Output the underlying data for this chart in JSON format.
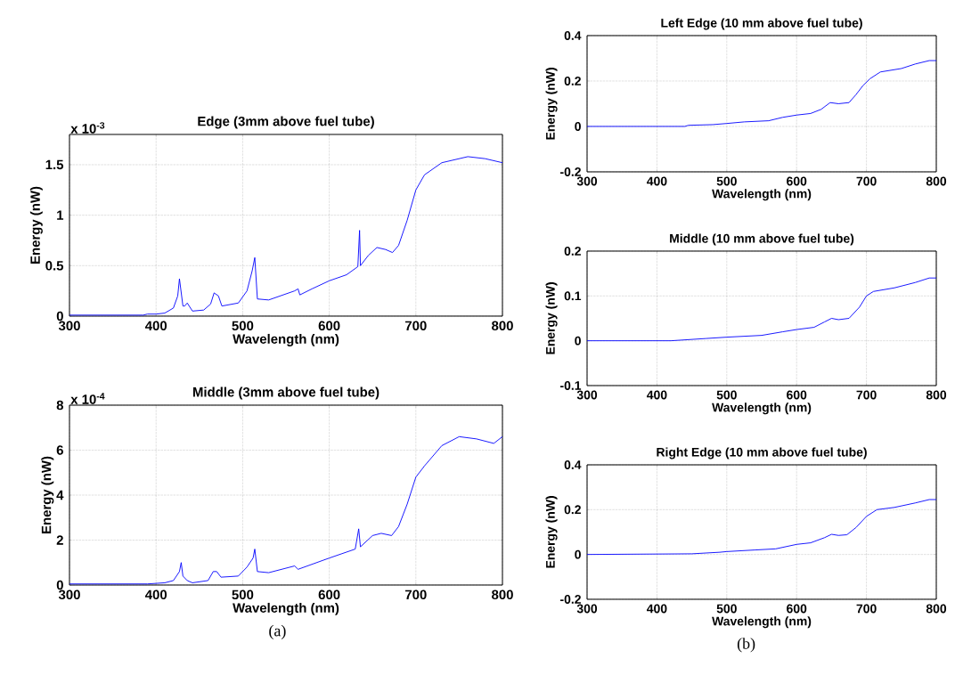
{
  "chart_data": [
    {
      "type": "line",
      "title": "Edge (3mm above fuel tube)",
      "xlabel": "Wavelength (nm)",
      "ylabel": "Energy (nW)",
      "annotations": [
        "x 10$^{-3}$"
      ],
      "xlim": [
        300,
        800
      ],
      "ylim": [
        0,
        1.8
      ],
      "xticks": [
        300,
        400,
        500,
        600,
        700,
        800
      ],
      "yticks": [
        0,
        0.5,
        1,
        1.5
      ],
      "grid": true,
      "x": [
        300,
        350,
        385,
        390,
        400,
        410,
        420,
        425,
        427,
        431,
        433,
        436,
        442,
        455,
        463,
        467,
        472,
        476,
        495,
        505,
        511,
        514,
        517,
        530,
        560,
        564,
        566,
        580,
        600,
        620,
        633,
        635,
        636,
        645,
        655,
        665,
        673,
        680,
        690,
        700,
        710,
        730,
        760,
        780,
        800
      ],
      "series": [
        {
          "color": "#0000ff",
          "values": [
            0.01,
            0.01,
            0.01,
            0.02,
            0.02,
            0.03,
            0.08,
            0.2,
            0.37,
            0.1,
            0.1,
            0.13,
            0.05,
            0.06,
            0.12,
            0.23,
            0.2,
            0.1,
            0.13,
            0.25,
            0.45,
            0.58,
            0.17,
            0.16,
            0.25,
            0.27,
            0.21,
            0.27,
            0.35,
            0.41,
            0.49,
            0.85,
            0.5,
            0.6,
            0.68,
            0.66,
            0.63,
            0.7,
            0.95,
            1.25,
            1.4,
            1.52,
            1.58,
            1.56,
            1.52
          ]
        }
      ]
    },
    {
      "type": "line",
      "title": "Middle (3mm above fuel tube)",
      "xlabel": "Wavelength (nm)",
      "ylabel": "Energy (nW)",
      "annotations": [
        "x 10$^{-4}$",
        "(a)"
      ],
      "xlim": [
        300,
        800
      ],
      "ylim": [
        0,
        8
      ],
      "xticks": [
        300,
        400,
        500,
        600,
        700,
        800
      ],
      "yticks": [
        0,
        2,
        4,
        6,
        8
      ],
      "grid": true,
      "x": [
        300,
        390,
        410,
        420,
        427,
        429,
        431,
        436,
        442,
        460,
        466,
        470,
        475,
        495,
        505,
        512,
        514,
        517,
        530,
        560,
        564,
        600,
        630,
        634,
        636,
        650,
        660,
        672,
        680,
        690,
        700,
        710,
        730,
        750,
        770,
        790,
        800
      ],
      "series": [
        {
          "color": "#0000ff",
          "values": [
            0.05,
            0.05,
            0.1,
            0.2,
            0.6,
            1,
            0.4,
            0.2,
            0.1,
            0.2,
            0.6,
            0.6,
            0.35,
            0.4,
            0.8,
            1.2,
            1.6,
            0.6,
            0.55,
            0.85,
            0.7,
            1.2,
            1.6,
            2.5,
            1.7,
            2.2,
            2.3,
            2.2,
            2.6,
            3.6,
            4.8,
            5.3,
            6.2,
            6.6,
            6.5,
            6.3,
            6.6
          ]
        }
      ]
    },
    {
      "type": "line",
      "title": "Left Edge (10 mm above fuel tube)",
      "xlabel": "Wavelength (nm)",
      "ylabel": "Energy (nW)",
      "xlim": [
        300,
        800
      ],
      "ylim": [
        -0.2,
        0.4
      ],
      "xticks": [
        300,
        400,
        500,
        600,
        700,
        800
      ],
      "yticks": [
        -0.2,
        0,
        0.2,
        0.4
      ],
      "grid": true,
      "x": [
        300,
        440,
        445,
        480,
        500,
        525,
        560,
        580,
        600,
        620,
        635,
        648,
        660,
        675,
        685,
        695,
        705,
        720,
        750,
        770,
        790,
        800
      ],
      "series": [
        {
          "color": "#0000ff",
          "values": [
            0,
            0,
            0.005,
            0.008,
            0.013,
            0.02,
            0.025,
            0.04,
            0.05,
            0.057,
            0.075,
            0.105,
            0.1,
            0.105,
            0.14,
            0.18,
            0.21,
            0.24,
            0.255,
            0.275,
            0.29,
            0.29
          ]
        }
      ]
    },
    {
      "type": "line",
      "title": "Middle (10 mm above fuel tube)",
      "xlabel": "Wavelength (nm)",
      "ylabel": "Energy (nW)",
      "xlim": [
        300,
        800
      ],
      "ylim": [
        -0.1,
        0.2
      ],
      "xticks": [
        300,
        400,
        500,
        600,
        700,
        800
      ],
      "yticks": [
        -0.1,
        0,
        0.1,
        0.2
      ],
      "grid": true,
      "x": [
        300,
        420,
        470,
        500,
        550,
        580,
        600,
        625,
        640,
        650,
        660,
        675,
        690,
        700,
        710,
        740,
        770,
        790,
        800
      ],
      "series": [
        {
          "color": "#0000ff",
          "values": [
            0,
            0,
            0.005,
            0.008,
            0.012,
            0.02,
            0.025,
            0.03,
            0.042,
            0.05,
            0.047,
            0.05,
            0.075,
            0.1,
            0.11,
            0.118,
            0.13,
            0.14,
            0.14
          ]
        }
      ]
    },
    {
      "type": "line",
      "title": "Right Edge (10 mm above fuel tube)",
      "xlabel": "Wavelength (nm)",
      "ylabel": "Energy (nW)",
      "annotations": [
        "(b)"
      ],
      "xlim": [
        300,
        800
      ],
      "ylim": [
        -0.2,
        0.4
      ],
      "xticks": [
        300,
        400,
        500,
        600,
        700,
        800
      ],
      "yticks": [
        -0.2,
        0,
        0.2,
        0.4
      ],
      "grid": true,
      "x": [
        300,
        450,
        490,
        500,
        540,
        570,
        600,
        620,
        640,
        650,
        660,
        672,
        685,
        700,
        715,
        740,
        770,
        790,
        800
      ],
      "series": [
        {
          "color": "#0000ff",
          "values": [
            0,
            0.003,
            0.01,
            0.013,
            0.02,
            0.025,
            0.045,
            0.052,
            0.075,
            0.09,
            0.085,
            0.088,
            0.12,
            0.17,
            0.2,
            0.21,
            0.23,
            0.245,
            0.245
          ]
        }
      ]
    }
  ]
}
